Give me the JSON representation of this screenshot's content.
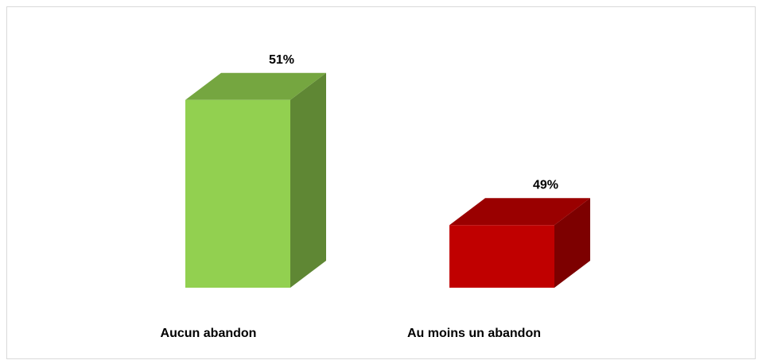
{
  "chart_data": {
    "type": "bar3d",
    "categories": [
      "Aucun abandon",
      "Au moins un abandon"
    ],
    "values": [
      51,
      49
    ],
    "value_labels": [
      "51%",
      "49%"
    ],
    "colors": [
      "#92d050",
      "#c00000"
    ],
    "ylim": [
      48,
      52
    ]
  }
}
